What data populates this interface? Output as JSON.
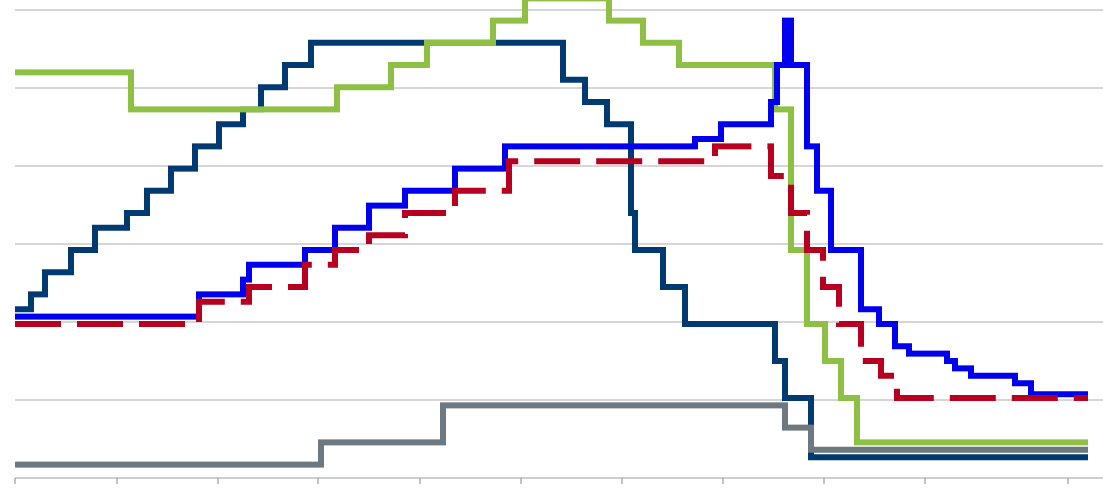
{
  "chart_data": {
    "type": "line",
    "step": true,
    "title": "",
    "xlabel": "",
    "ylabel": "",
    "x_ticks": [
      "",
      "",
      "",
      "",
      "",
      "",
      "",
      "",
      "",
      "",
      ""
    ],
    "y_ticks": [
      "",
      "",
      "",
      "",
      "",
      "",
      ""
    ],
    "xlim": [
      0,
      1073
    ],
    "ylim": [
      0,
      6
    ],
    "grid": {
      "horizontal": true,
      "vertical": false,
      "color": "#bdbdbd"
    },
    "legend": "none",
    "series": [
      {
        "name": "",
        "color": "#003a70",
        "dash": false,
        "label_at": null,
        "points": [
          [
            0,
            2.2
          ],
          [
            16,
            2.2
          ],
          [
            16,
            2.4
          ],
          [
            30,
            2.4
          ],
          [
            30,
            2.7
          ],
          [
            56,
            2.7
          ],
          [
            56,
            3.0
          ],
          [
            80,
            3.0
          ],
          [
            80,
            3.3
          ],
          [
            112,
            3.3
          ],
          [
            112,
            3.5
          ],
          [
            132,
            3.5
          ],
          [
            132,
            3.8
          ],
          [
            156,
            3.8
          ],
          [
            156,
            4.1
          ],
          [
            180,
            4.1
          ],
          [
            180,
            4.4
          ],
          [
            204,
            4.4
          ],
          [
            204,
            4.7
          ],
          [
            228,
            4.7
          ],
          [
            228,
            4.9
          ],
          [
            246,
            4.9
          ],
          [
            246,
            5.2
          ],
          [
            270,
            5.2
          ],
          [
            270,
            5.5
          ],
          [
            296,
            5.5
          ],
          [
            296,
            5.8
          ],
          [
            412,
            5.8
          ],
          [
            412,
            5.8
          ],
          [
            484,
            5.8
          ],
          [
            548,
            5.8
          ],
          [
            548,
            5.3
          ],
          [
            570,
            5.3
          ],
          [
            570,
            5.0
          ],
          [
            592,
            5.0
          ],
          [
            592,
            4.7
          ],
          [
            616,
            4.7
          ],
          [
            616,
            3.5
          ],
          [
            620,
            3.5
          ],
          [
            620,
            3.0
          ],
          [
            648,
            3.0
          ],
          [
            648,
            2.5
          ],
          [
            670,
            2.5
          ],
          [
            670,
            2.0
          ],
          [
            760,
            2.0
          ],
          [
            760,
            1.5
          ],
          [
            770,
            1.5
          ],
          [
            770,
            1.0
          ],
          [
            796,
            1.0
          ],
          [
            796,
            0.2
          ],
          [
            1073,
            0.2
          ]
        ]
      },
      {
        "name": "",
        "color": "#8dc044",
        "dash": false,
        "label_at": [
          500,
          4.9
        ],
        "points": [
          [
            0,
            5.4
          ],
          [
            116,
            5.4
          ],
          [
            116,
            4.9
          ],
          [
            220,
            4.9
          ],
          [
            220,
            4.9
          ],
          [
            322,
            4.9
          ],
          [
            322,
            5.2
          ],
          [
            376,
            5.2
          ],
          [
            376,
            5.5
          ],
          [
            412,
            5.5
          ],
          [
            412,
            5.8
          ],
          [
            478,
            5.8
          ],
          [
            478,
            6.1
          ],
          [
            510,
            6.1
          ],
          [
            510,
            6.4
          ],
          [
            594,
            6.4
          ],
          [
            594,
            6.1
          ],
          [
            628,
            6.1
          ],
          [
            628,
            5.8
          ],
          [
            664,
            5.8
          ],
          [
            664,
            5.5
          ],
          [
            760,
            5.5
          ],
          [
            760,
            4.9
          ],
          [
            776,
            4.9
          ],
          [
            776,
            3.0
          ],
          [
            792,
            3.0
          ],
          [
            792,
            2.0
          ],
          [
            810,
            2.0
          ],
          [
            810,
            1.5
          ],
          [
            826,
            1.5
          ],
          [
            826,
            1.0
          ],
          [
            842,
            1.0
          ],
          [
            842,
            0.4
          ],
          [
            1073,
            0.4
          ]
        ]
      },
      {
        "name": "",
        "color": "#0000ee",
        "dash": false,
        "label_at": [
          800,
          6.5
        ],
        "points": [
          [
            0,
            2.1
          ],
          [
            184,
            2.1
          ],
          [
            184,
            2.4
          ],
          [
            228,
            2.4
          ],
          [
            228,
            2.6
          ],
          [
            234,
            2.6
          ],
          [
            234,
            2.8
          ],
          [
            290,
            2.8
          ],
          [
            290,
            3.0
          ],
          [
            320,
            3.0
          ],
          [
            320,
            3.3
          ],
          [
            354,
            3.3
          ],
          [
            354,
            3.6
          ],
          [
            390,
            3.6
          ],
          [
            390,
            3.8
          ],
          [
            440,
            3.8
          ],
          [
            440,
            4.1
          ],
          [
            490,
            4.1
          ],
          [
            490,
            4.4
          ],
          [
            680,
            4.4
          ],
          [
            680,
            4.5
          ],
          [
            706,
            4.5
          ],
          [
            706,
            4.7
          ],
          [
            756,
            4.7
          ],
          [
            756,
            5.0
          ],
          [
            762,
            5.0
          ],
          [
            762,
            5.5
          ],
          [
            770,
            5.5
          ],
          [
            770,
            6.1
          ],
          [
            776,
            6.1
          ],
          [
            776,
            5.5
          ],
          [
            792,
            5.5
          ],
          [
            792,
            4.4
          ],
          [
            802,
            4.4
          ],
          [
            802,
            3.8
          ],
          [
            816,
            3.8
          ],
          [
            816,
            3.0
          ],
          [
            846,
            3.0
          ],
          [
            846,
            2.2
          ],
          [
            864,
            2.2
          ],
          [
            864,
            2.0
          ],
          [
            880,
            2.0
          ],
          [
            880,
            1.7
          ],
          [
            894,
            1.7
          ],
          [
            894,
            1.6
          ],
          [
            932,
            1.6
          ],
          [
            932,
            1.5
          ],
          [
            940,
            1.5
          ],
          [
            940,
            1.4
          ],
          [
            956,
            1.4
          ],
          [
            956,
            1.3
          ],
          [
            1000,
            1.3
          ],
          [
            1000,
            1.2
          ],
          [
            1016,
            1.2
          ],
          [
            1016,
            1.05
          ],
          [
            1073,
            1.05
          ]
        ]
      },
      {
        "name": "",
        "color": "#b7001f",
        "dash": true,
        "label_at": [
          456,
          2.0
        ],
        "points": [
          [
            0,
            2.0
          ],
          [
            184,
            2.0
          ],
          [
            184,
            2.3
          ],
          [
            234,
            2.3
          ],
          [
            234,
            2.5
          ],
          [
            290,
            2.5
          ],
          [
            290,
            2.8
          ],
          [
            320,
            2.8
          ],
          [
            320,
            3.0
          ],
          [
            354,
            3.0
          ],
          [
            354,
            3.2
          ],
          [
            390,
            3.2
          ],
          [
            390,
            3.5
          ],
          [
            440,
            3.5
          ],
          [
            440,
            3.8
          ],
          [
            494,
            3.8
          ],
          [
            494,
            4.2
          ],
          [
            700,
            4.2
          ],
          [
            700,
            4.4
          ],
          [
            756,
            4.4
          ],
          [
            756,
            4.0
          ],
          [
            776,
            4.0
          ],
          [
            776,
            3.5
          ],
          [
            792,
            3.5
          ],
          [
            792,
            3.0
          ],
          [
            808,
            3.0
          ],
          [
            808,
            2.5
          ],
          [
            824,
            2.5
          ],
          [
            824,
            2.0
          ],
          [
            846,
            2.0
          ],
          [
            846,
            1.5
          ],
          [
            866,
            1.5
          ],
          [
            866,
            1.3
          ],
          [
            882,
            1.3
          ],
          [
            882,
            1.0
          ],
          [
            1073,
            1.0
          ]
        ]
      },
      {
        "name": "",
        "color": "#6d7880",
        "dash": false,
        "label_at": [
          560,
          0.9
        ],
        "points": [
          [
            0,
            0.1
          ],
          [
            306,
            0.1
          ],
          [
            306,
            0.4
          ],
          [
            428,
            0.4
          ],
          [
            428,
            0.9
          ],
          [
            770,
            0.9
          ],
          [
            770,
            0.6
          ],
          [
            796,
            0.6
          ],
          [
            796,
            0.3
          ],
          [
            1073,
            0.3
          ]
        ]
      }
    ],
    "annotations": [
      {
        "text": "",
        "x": 618,
        "y": 2.0,
        "color": "#000000"
      }
    ]
  }
}
